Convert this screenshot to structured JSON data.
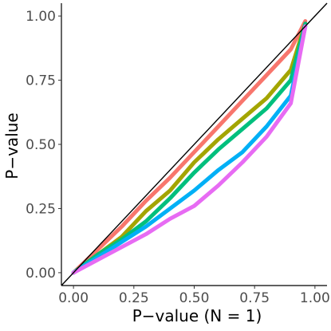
{
  "chart_data": {
    "type": "line",
    "xlabel": "P−value (N = 1)",
    "ylabel": "P−value",
    "xlim": [
      -0.05,
      1.05
    ],
    "ylim": [
      -0.05,
      1.05
    ],
    "x_ticks": [
      0.0,
      0.25,
      0.5,
      0.75,
      1.0
    ],
    "x_tick_labels": [
      "0.00",
      "0.25",
      "0.50",
      "0.75",
      "1.00"
    ],
    "y_ticks": [
      0.0,
      0.25,
      0.5,
      0.75,
      1.0
    ],
    "y_tick_labels": [
      "0.00",
      "0.25",
      "0.50",
      "0.75",
      "1.00"
    ],
    "grid": false,
    "legend": "none",
    "reference_line": {
      "x": [
        -0.05,
        1.05
      ],
      "y": [
        -0.05,
        1.05
      ],
      "color": "#000000"
    },
    "series": [
      {
        "color": "#F8766D",
        "x": [
          0.0,
          0.1,
          0.2,
          0.3,
          0.4,
          0.5,
          0.6,
          0.7,
          0.8,
          0.9,
          0.96
        ],
        "y": [
          0.0,
          0.09,
          0.18,
          0.28,
          0.37,
          0.47,
          0.57,
          0.67,
          0.77,
          0.87,
          0.98
        ]
      },
      {
        "color": "#A3A500",
        "x": [
          0.0,
          0.1,
          0.2,
          0.3,
          0.4,
          0.5,
          0.6,
          0.7,
          0.8,
          0.9,
          0.96
        ],
        "y": [
          0.0,
          0.07,
          0.14,
          0.24,
          0.32,
          0.43,
          0.52,
          0.6,
          0.68,
          0.79,
          0.97
        ]
      },
      {
        "color": "#00BF7D",
        "x": [
          0.0,
          0.1,
          0.2,
          0.3,
          0.4,
          0.5,
          0.6,
          0.7,
          0.8,
          0.9,
          0.96
        ],
        "y": [
          0.0,
          0.07,
          0.13,
          0.2,
          0.29,
          0.39,
          0.48,
          0.56,
          0.64,
          0.75,
          0.97
        ]
      },
      {
        "color": "#00B0F6",
        "x": [
          0.0,
          0.1,
          0.2,
          0.3,
          0.4,
          0.5,
          0.6,
          0.7,
          0.8,
          0.9,
          0.96
        ],
        "y": [
          0.0,
          0.06,
          0.12,
          0.18,
          0.25,
          0.32,
          0.4,
          0.47,
          0.57,
          0.69,
          0.96
        ]
      },
      {
        "color": "#E76BF3",
        "x": [
          0.0,
          0.1,
          0.2,
          0.3,
          0.4,
          0.5,
          0.6,
          0.7,
          0.8,
          0.9,
          0.96
        ],
        "y": [
          0.0,
          0.05,
          0.1,
          0.15,
          0.21,
          0.26,
          0.34,
          0.43,
          0.53,
          0.66,
          0.96
        ]
      }
    ]
  }
}
